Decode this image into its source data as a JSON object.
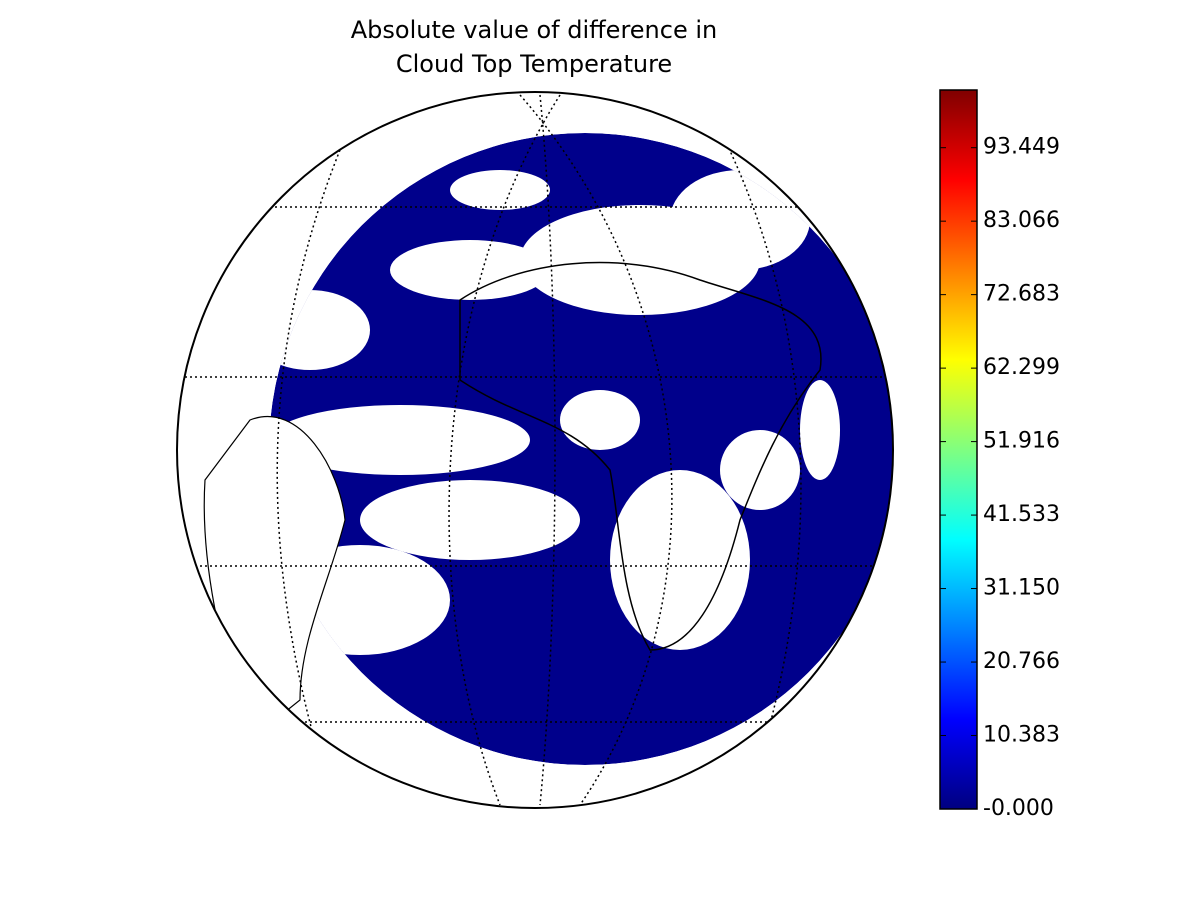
{
  "title_lines": [
    "Absolute value of difference in",
    "Cloud Top Temperature"
  ],
  "colorbar": {
    "colormap": "jet",
    "lim": [
      0,
      101.6
    ],
    "ticks": [
      {
        "value": 0,
        "label": "-0.000"
      },
      10.383,
      20.766,
      {
        "value": 31.15,
        "label": "31.150"
      },
      41.533,
      51.916,
      62.299,
      72.683,
      83.066,
      93.449
    ]
  }
}
